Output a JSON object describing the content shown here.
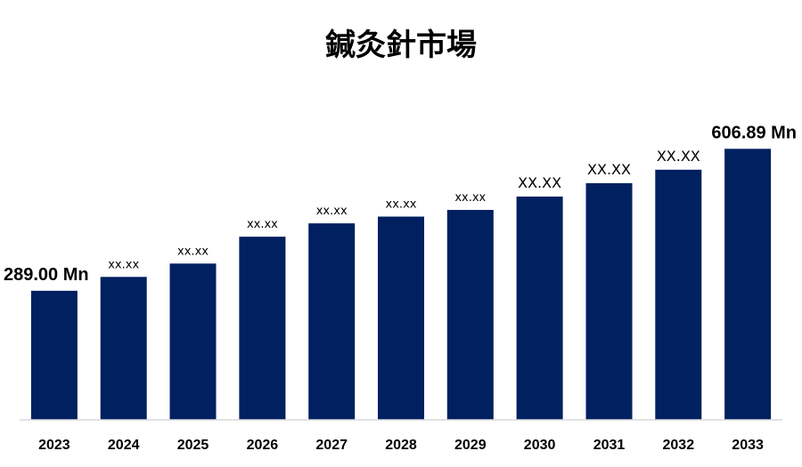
{
  "chart_data": {
    "type": "bar",
    "title": "鍼灸針市場",
    "categories": [
      "2023",
      "2024",
      "2025",
      "2026",
      "2027",
      "2028",
      "2029",
      "2030",
      "2031",
      "2032",
      "2033"
    ],
    "values": [
      289.0,
      320.0,
      350.0,
      410.0,
      440.0,
      455.0,
      470.0,
      500.0,
      530.0,
      560.0,
      606.89
    ],
    "data_labels": [
      "289.00 Mn",
      "xx.xx",
      "xx.xx",
      "xx.xx",
      "xx.xx",
      "xx.xx",
      "xx.xx",
      "XX.XX",
      "XX.XX",
      "XX.XX",
      "606.89 Mn"
    ],
    "xlabel": "",
    "ylabel": "",
    "ylim": [
      0,
      620
    ],
    "grid": false,
    "legend": "none",
    "colors": {
      "bar": "#002060",
      "axis": "#d9d9d9"
    }
  }
}
